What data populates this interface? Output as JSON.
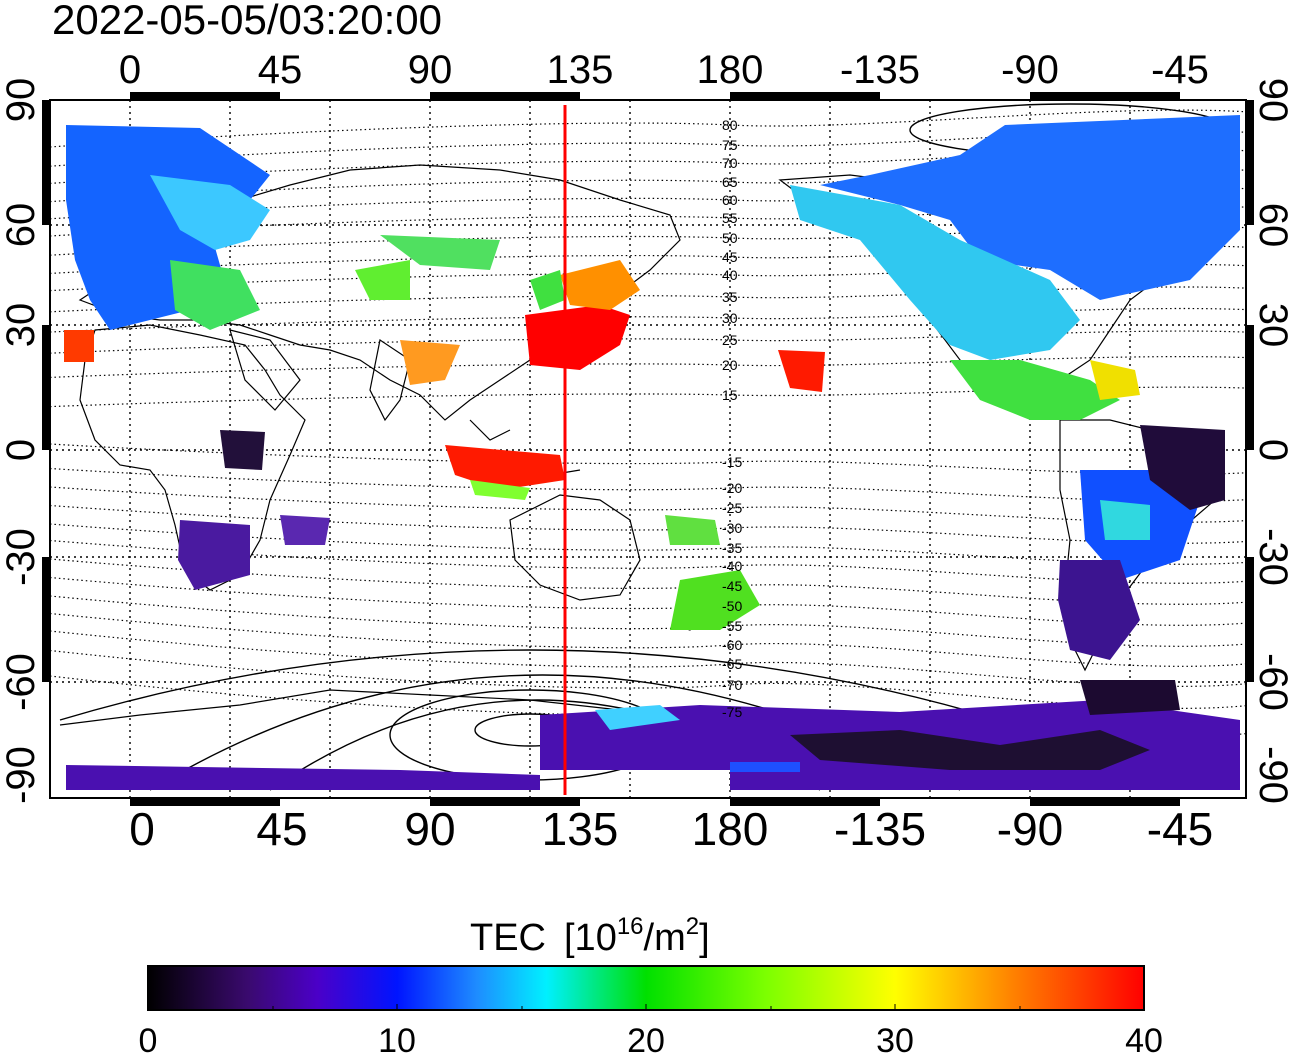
{
  "timestamp": "2022-05-05/03:20:00",
  "axes": {
    "lon_top_labels": [
      "0",
      "45",
      "90",
      "135",
      "180",
      "-135",
      "-90",
      "-45"
    ],
    "lon_bottom_labels": [
      "0",
      "45",
      "90",
      "135",
      "180",
      "-135",
      "-90",
      "-45"
    ],
    "lat_left_labels": [
      "90",
      "60",
      "30",
      "0",
      "-30",
      "-60",
      "-90"
    ],
    "lat_right_labels": [
      "90",
      "60",
      "30",
      "0",
      "-30",
      "-60",
      "-90"
    ]
  },
  "contour_labels": [
    "80",
    "75",
    "70",
    "65",
    "60",
    "55",
    "50",
    "45",
    "40",
    "35",
    "30",
    "25",
    "20",
    "15",
    "-15",
    "-20",
    "-25",
    "-30",
    "-35",
    "-40",
    "-45",
    "-50",
    "-55",
    "-60",
    "-65",
    "-70",
    "-75"
  ],
  "colorbar": {
    "title": "TEC",
    "unit_prefix": "[10",
    "unit_exp": "16",
    "unit_mid": "/m",
    "unit_exp2": "2",
    "unit_suffix": "]",
    "tick_labels": [
      "0",
      "10",
      "20",
      "30",
      "40"
    ],
    "min": 0,
    "max": 40,
    "colors": [
      "#000000",
      "#3a0a6e",
      "#4b00c8",
      "#0014ff",
      "#1e8cff",
      "#00f0ff",
      "#00e000",
      "#7cff00",
      "#ffff00",
      "#ff8000",
      "#ff0000"
    ]
  },
  "marker": {
    "longitude_deg": 130,
    "color": "#ff0000"
  }
}
